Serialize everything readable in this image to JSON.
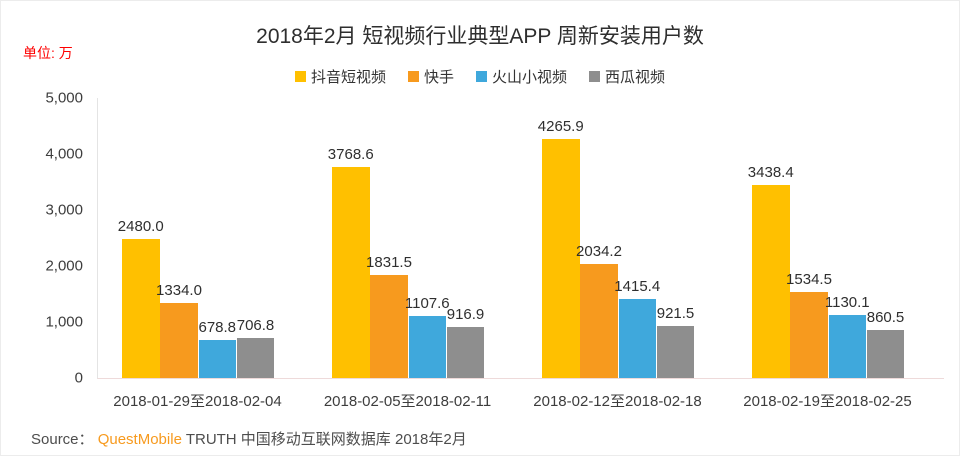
{
  "page": {
    "unit_label": "单位: 万",
    "unit_color": "#fe0000"
  },
  "chart_data": {
    "type": "bar",
    "title": "2018年2月 短视频行业典型APP 周新安装用户数",
    "unit": "单位: 万",
    "categories": [
      "2018-01-29至2018-02-04",
      "2018-02-05至2018-02-11",
      "2018-02-12至2018-02-18",
      "2018-02-19至2018-02-25"
    ],
    "series": [
      {
        "name": "抖音短视频",
        "color": "#ffc000",
        "values": [
          2480.0,
          3768.6,
          4265.9,
          3438.4
        ]
      },
      {
        "name": "快手",
        "color": "#f79a1e",
        "values": [
          1334.0,
          1831.5,
          2034.2,
          1534.5
        ]
      },
      {
        "name": "火山小视频",
        "color": "#3fa8dc",
        "values": [
          678.8,
          1107.6,
          1415.4,
          1130.1
        ]
      },
      {
        "name": "西瓜视频",
        "color": "#8e8e8e",
        "values": [
          706.8,
          916.9,
          921.5,
          860.5
        ]
      }
    ],
    "ylim": [
      0,
      5000
    ],
    "ytick_labels": [
      "0",
      "1,000",
      "2,000",
      "3,000",
      "4,000",
      "5,000"
    ],
    "grid": false,
    "legend_position": "top",
    "value_labels_decimals": 1
  },
  "source": {
    "prefix": "Source： ",
    "brand": "QuestMobile",
    "suffix": " TRUTH 中国移动互联网数据库 2018年2月"
  }
}
